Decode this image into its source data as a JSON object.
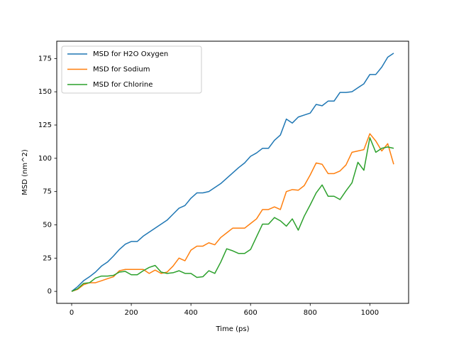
{
  "chart_data": {
    "type": "line",
    "title": "",
    "xlabel": "Time (ps)",
    "ylabel": "MSD (nm^2)",
    "xlim": [
      -50,
      1130
    ],
    "ylim": [
      -9,
      188
    ],
    "xticks": [
      0,
      200,
      400,
      600,
      800,
      1000
    ],
    "yticks": [
      0,
      25,
      50,
      75,
      100,
      125,
      150,
      175
    ],
    "grid": false,
    "legend_position": "upper-left",
    "series": [
      {
        "name": "MSD for H2O Oxygen",
        "color": "#1f77b4",
        "x": [
          0,
          20,
          40,
          60,
          80,
          100,
          120,
          140,
          160,
          180,
          200,
          220,
          240,
          260,
          280,
          300,
          320,
          340,
          360,
          380,
          400,
          420,
          440,
          460,
          480,
          500,
          520,
          540,
          560,
          580,
          600,
          620,
          640,
          660,
          680,
          700,
          720,
          740,
          760,
          780,
          800,
          820,
          840,
          860,
          880,
          900,
          920,
          940,
          960,
          980,
          1000,
          1020,
          1040,
          1060,
          1080
        ],
        "y": [
          0,
          3.5,
          8,
          11,
          14.5,
          19,
          22,
          26.5,
          31.5,
          35.5,
          37.5,
          37.5,
          41.5,
          44.5,
          47.5,
          50.5,
          53.5,
          58,
          62.5,
          64.5,
          70,
          74,
          74,
          75,
          78,
          81,
          85,
          89,
          93,
          96.5,
          101.5,
          104,
          107.5,
          107.5,
          113.5,
          117.5,
          129.5,
          126.5,
          131,
          132.5,
          134,
          140.5,
          139.5,
          143,
          143,
          149.5,
          149.5,
          150,
          153,
          156,
          163,
          163,
          168.5,
          176,
          179
        ]
      },
      {
        "name": "MSD for Sodium",
        "color": "#ff7f0e",
        "x": [
          0,
          20,
          40,
          60,
          80,
          100,
          120,
          140,
          160,
          180,
          200,
          220,
          240,
          260,
          280,
          300,
          320,
          340,
          360,
          380,
          400,
          420,
          440,
          460,
          480,
          500,
          520,
          540,
          560,
          580,
          600,
          620,
          640,
          660,
          680,
          700,
          720,
          740,
          760,
          780,
          800,
          820,
          840,
          860,
          880,
          900,
          920,
          940,
          960,
          980,
          1000,
          1020,
          1040,
          1060,
          1080
        ],
        "y": [
          0,
          1.5,
          5,
          6.5,
          6.5,
          8,
          9.5,
          11,
          15.5,
          16.5,
          16.5,
          16.5,
          16.5,
          13.5,
          16,
          13.5,
          14.5,
          19,
          25,
          23,
          31,
          34,
          34,
          36.5,
          35,
          40.5,
          44,
          47.5,
          47.5,
          47.5,
          51,
          54.5,
          61.5,
          61.5,
          63.5,
          61.5,
          75,
          76.5,
          76,
          79.5,
          87.5,
          96.5,
          95.5,
          88.5,
          88.5,
          90.5,
          95,
          104.5,
          105.5,
          106.5,
          118.5,
          113,
          105.5,
          111,
          95.5
        ]
      },
      {
        "name": "MSD for Chlorine",
        "color": "#2ca02c",
        "x": [
          0,
          20,
          40,
          60,
          80,
          100,
          120,
          140,
          160,
          180,
          200,
          220,
          240,
          260,
          280,
          300,
          320,
          340,
          360,
          380,
          400,
          420,
          440,
          460,
          480,
          500,
          520,
          540,
          560,
          580,
          600,
          620,
          640,
          660,
          680,
          700,
          720,
          740,
          760,
          780,
          800,
          820,
          840,
          860,
          880,
          900,
          920,
          940,
          960,
          980,
          1000,
          1020,
          1040,
          1060,
          1080
        ],
        "y": [
          0,
          2,
          6,
          6.5,
          10,
          11.5,
          11.5,
          12,
          14.5,
          15,
          12.5,
          12.5,
          15.5,
          18,
          19.5,
          14.5,
          13.5,
          14,
          15.5,
          13.5,
          13.5,
          10.5,
          11,
          15.5,
          13.5,
          22,
          32,
          30.5,
          28.5,
          28.5,
          31.5,
          41,
          50.5,
          50.5,
          55.5,
          53,
          49,
          54.5,
          46,
          56.5,
          65,
          74,
          80,
          71.5,
          71.5,
          69,
          75.5,
          81.5,
          97,
          91,
          115.5,
          104.5,
          107.5,
          108.5,
          107.5
        ]
      }
    ]
  }
}
